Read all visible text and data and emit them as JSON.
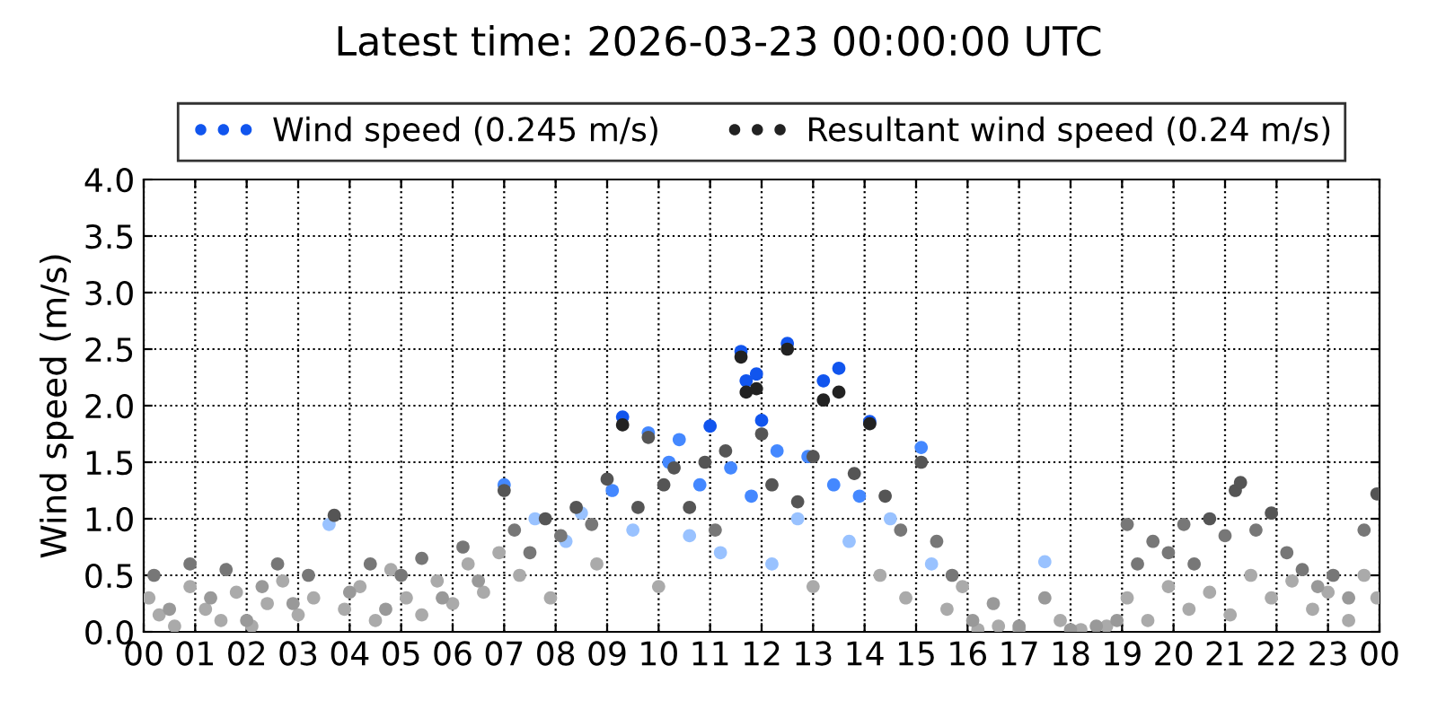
{
  "chart_data": {
    "type": "scatter",
    "title": "Latest time: 2026-03-23 00:00:00 UTC",
    "ylabel": "Wind speed (m/s)",
    "xlim": [
      0,
      24
    ],
    "ylim": [
      0,
      4.0
    ],
    "xticks": [
      {
        "value": 0,
        "label": "00"
      },
      {
        "value": 1,
        "label": "01"
      },
      {
        "value": 2,
        "label": "02"
      },
      {
        "value": 3,
        "label": "03"
      },
      {
        "value": 4,
        "label": "04"
      },
      {
        "value": 5,
        "label": "05"
      },
      {
        "value": 6,
        "label": "06"
      },
      {
        "value": 7,
        "label": "07"
      },
      {
        "value": 8,
        "label": "08"
      },
      {
        "value": 9,
        "label": "09"
      },
      {
        "value": 10,
        "label": "10"
      },
      {
        "value": 11,
        "label": "11"
      },
      {
        "value": 12,
        "label": "12"
      },
      {
        "value": 13,
        "label": "13"
      },
      {
        "value": 14,
        "label": "14"
      },
      {
        "value": 15,
        "label": "15"
      },
      {
        "value": 16,
        "label": "16"
      },
      {
        "value": 17,
        "label": "17"
      },
      {
        "value": 18,
        "label": "18"
      },
      {
        "value": 19,
        "label": "19"
      },
      {
        "value": 20,
        "label": "20"
      },
      {
        "value": 21,
        "label": "21"
      },
      {
        "value": 22,
        "label": "22"
      },
      {
        "value": 23,
        "label": "23"
      },
      {
        "value": 24,
        "label": "00"
      }
    ],
    "yticks": [
      {
        "value": 0,
        "label": "0.0"
      },
      {
        "value": 0.5,
        "label": "0.5"
      },
      {
        "value": 1,
        "label": "1.0"
      },
      {
        "value": 1.5,
        "label": "1.5"
      },
      {
        "value": 2,
        "label": "2.0"
      },
      {
        "value": 2.5,
        "label": "2.5"
      },
      {
        "value": 3,
        "label": "3.0"
      },
      {
        "value": 3.5,
        "label": "3.5"
      },
      {
        "value": 4,
        "label": "4.0"
      }
    ],
    "grid": true,
    "legend": "top",
    "marker": "circle",
    "series": [
      {
        "name": "Wind speed (0.245 m/s)",
        "color": "#1155ee",
        "x": [
          0.1,
          0.3,
          0.6,
          0.9,
          1.2,
          1.5,
          1.8,
          2.1,
          2.4,
          2.7,
          3.0,
          3.3,
          3.6,
          3.9,
          4.2,
          4.5,
          4.8,
          5.1,
          5.4,
          5.7,
          6.0,
          6.3,
          6.6,
          6.9,
          7.0,
          7.3,
          7.6,
          7.9,
          8.2,
          8.5,
          8.8,
          9.1,
          9.3,
          9.5,
          9.8,
          10.0,
          10.2,
          10.4,
          10.6,
          10.8,
          11.0,
          11.2,
          11.4,
          11.6,
          11.7,
          11.8,
          11.9,
          12.0,
          12.2,
          12.3,
          12.5,
          12.7,
          12.9,
          13.0,
          13.2,
          13.4,
          13.5,
          13.7,
          13.9,
          14.1,
          14.3,
          14.5,
          14.8,
          15.1,
          15.3,
          15.6,
          15.9,
          16.2,
          16.6,
          17.0,
          17.5,
          17.8,
          18.2,
          18.7,
          19.1,
          19.5,
          19.9,
          20.3,
          20.7,
          21.1,
          21.5,
          21.9,
          22.3,
          22.7,
          23.0,
          23.4,
          23.7,
          23.95
        ],
        "values": [
          0.3,
          0.15,
          0.05,
          0.4,
          0.2,
          0.1,
          0.35,
          0.05,
          0.25,
          0.45,
          0.15,
          0.3,
          0.95,
          0.2,
          0.4,
          0.1,
          0.55,
          0.3,
          0.15,
          0.45,
          0.25,
          0.6,
          0.35,
          0.7,
          1.3,
          0.5,
          1.0,
          0.3,
          0.8,
          1.05,
          0.6,
          1.25,
          1.9,
          0.9,
          1.76,
          0.4,
          1.5,
          1.7,
          0.85,
          1.3,
          1.82,
          0.7,
          1.45,
          2.48,
          2.22,
          1.2,
          2.28,
          1.87,
          0.6,
          1.6,
          2.55,
          1.0,
          1.55,
          0.4,
          2.22,
          1.3,
          2.33,
          0.8,
          1.2,
          1.86,
          0.5,
          1.0,
          0.3,
          1.63,
          0.6,
          0.2,
          0.4,
          0.02,
          0.05,
          0.02,
          0.62,
          0.1,
          0.02,
          0.05,
          0.3,
          0.1,
          0.4,
          0.2,
          0.35,
          0.15,
          0.5,
          0.3,
          0.45,
          0.2,
          0.35,
          0.1,
          0.5,
          0.3
        ],
        "colors": [
          "#aaaaaa",
          "#aaaaaa",
          "#aaaaaa",
          "#aaaaaa",
          "#aaaaaa",
          "#aaaaaa",
          "#aaaaaa",
          "#aaaaaa",
          "#aaaaaa",
          "#aaaaaa",
          "#aaaaaa",
          "#aaaaaa",
          "#99c2ff",
          "#aaaaaa",
          "#aaaaaa",
          "#aaaaaa",
          "#aaaaaa",
          "#aaaaaa",
          "#aaaaaa",
          "#aaaaaa",
          "#aaaaaa",
          "#aaaaaa",
          "#aaaaaa",
          "#aaaaaa",
          "#4488ff",
          "#aaaaaa",
          "#99c2ff",
          "#aaaaaa",
          "#99c2ff",
          "#99c2ff",
          "#aaaaaa",
          "#4488ff",
          "#1155ee",
          "#99c2ff",
          "#4488ff",
          "#aaaaaa",
          "#4488ff",
          "#4488ff",
          "#99c2ff",
          "#4488ff",
          "#1155ee",
          "#99c2ff",
          "#4488ff",
          "#1155ee",
          "#1155ee",
          "#4488ff",
          "#1155ee",
          "#1155ee",
          "#99c2ff",
          "#4488ff",
          "#1155ee",
          "#99c2ff",
          "#4488ff",
          "#aaaaaa",
          "#1155ee",
          "#4488ff",
          "#1155ee",
          "#99c2ff",
          "#4488ff",
          "#1155ee",
          "#aaaaaa",
          "#99c2ff",
          "#aaaaaa",
          "#4488ff",
          "#99c2ff",
          "#aaaaaa",
          "#aaaaaa",
          "#aaaaaa",
          "#aaaaaa",
          "#aaaaaa",
          "#99c2ff",
          "#aaaaaa",
          "#aaaaaa",
          "#aaaaaa",
          "#aaaaaa",
          "#aaaaaa",
          "#aaaaaa",
          "#aaaaaa",
          "#aaaaaa",
          "#aaaaaa",
          "#aaaaaa",
          "#aaaaaa",
          "#aaaaaa",
          "#aaaaaa",
          "#aaaaaa",
          "#aaaaaa",
          "#aaaaaa",
          "#aaaaaa"
        ]
      },
      {
        "name": "Resultant wind speed (0.24 m/s)",
        "color": "#222222",
        "x": [
          0.2,
          0.5,
          0.9,
          1.3,
          1.6,
          2.0,
          2.3,
          2.6,
          2.9,
          3.2,
          3.7,
          4.0,
          4.4,
          4.7,
          5.0,
          5.4,
          5.8,
          6.2,
          6.5,
          7.0,
          7.2,
          7.5,
          7.8,
          8.1,
          8.4,
          8.7,
          9.0,
          9.3,
          9.6,
          9.8,
          10.1,
          10.3,
          10.6,
          10.9,
          11.1,
          11.3,
          11.6,
          11.7,
          11.9,
          12.0,
          12.2,
          12.5,
          12.7,
          13.0,
          13.2,
          13.5,
          13.8,
          14.1,
          14.4,
          14.7,
          15.1,
          15.4,
          15.7,
          16.1,
          16.5,
          17.0,
          17.5,
          18.0,
          18.5,
          18.9,
          19.1,
          19.3,
          19.6,
          19.9,
          20.2,
          20.4,
          20.7,
          21.0,
          21.2,
          21.3,
          21.6,
          21.9,
          22.2,
          22.5,
          22.8,
          23.1,
          23.4,
          23.7,
          23.95
        ],
        "values": [
          0.5,
          0.2,
          0.6,
          0.3,
          0.55,
          0.1,
          0.4,
          0.6,
          0.25,
          0.5,
          1.03,
          0.35,
          0.6,
          0.2,
          0.5,
          0.65,
          0.3,
          0.75,
          0.45,
          1.25,
          0.9,
          0.7,
          1.0,
          0.85,
          1.1,
          0.95,
          1.35,
          1.83,
          1.1,
          1.72,
          1.3,
          1.45,
          1.1,
          1.5,
          0.9,
          1.6,
          2.43,
          2.12,
          2.15,
          1.75,
          1.3,
          2.5,
          1.15,
          1.55,
          2.05,
          2.12,
          1.4,
          1.84,
          1.2,
          0.9,
          1.5,
          0.8,
          0.5,
          0.1,
          0.25,
          0.05,
          0.3,
          0.02,
          0.05,
          0.1,
          0.95,
          0.6,
          0.8,
          0.7,
          0.95,
          0.6,
          1.0,
          0.85,
          1.25,
          1.32,
          0.9,
          1.05,
          0.7,
          0.55,
          0.4,
          0.5,
          0.3,
          0.9,
          1.22
        ],
        "colors": [
          "#777777",
          "#999999",
          "#777777",
          "#999999",
          "#777777",
          "#999999",
          "#999999",
          "#777777",
          "#999999",
          "#777777",
          "#555555",
          "#999999",
          "#777777",
          "#999999",
          "#777777",
          "#777777",
          "#999999",
          "#777777",
          "#999999",
          "#555555",
          "#777777",
          "#777777",
          "#555555",
          "#777777",
          "#555555",
          "#777777",
          "#555555",
          "#222222",
          "#555555",
          "#555555",
          "#555555",
          "#555555",
          "#555555",
          "#555555",
          "#777777",
          "#555555",
          "#222222",
          "#222222",
          "#222222",
          "#555555",
          "#555555",
          "#222222",
          "#555555",
          "#555555",
          "#222222",
          "#222222",
          "#555555",
          "#222222",
          "#555555",
          "#777777",
          "#555555",
          "#777777",
          "#777777",
          "#999999",
          "#999999",
          "#999999",
          "#999999",
          "#999999",
          "#999999",
          "#999999",
          "#777777",
          "#777777",
          "#777777",
          "#777777",
          "#777777",
          "#777777",
          "#555555",
          "#777777",
          "#555555",
          "#555555",
          "#777777",
          "#555555",
          "#777777",
          "#777777",
          "#999999",
          "#777777",
          "#999999",
          "#777777",
          "#555555"
        ]
      }
    ]
  }
}
